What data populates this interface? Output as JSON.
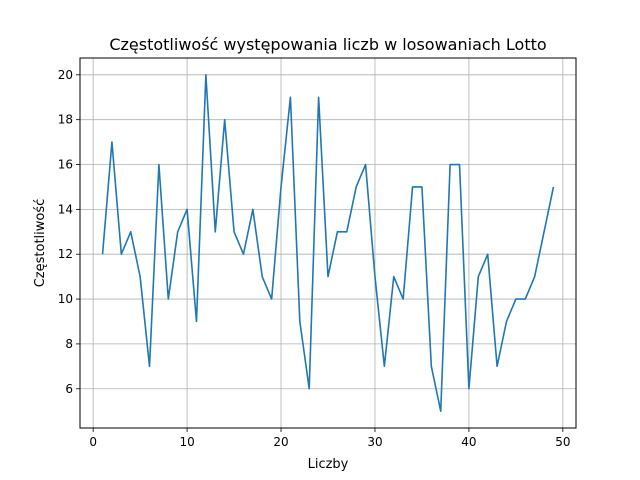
{
  "chart_data": {
    "type": "line",
    "title": "Częstotliwość występowania liczb w losowaniach Lotto",
    "xlabel": "Liczby",
    "ylabel": "Częstotliwość",
    "xlim": [
      -1.4,
      51.4
    ],
    "ylim": [
      4.25,
      20.75
    ],
    "xticks": [
      0,
      10,
      20,
      30,
      40,
      50
    ],
    "yticks": [
      6,
      8,
      10,
      12,
      14,
      16,
      18,
      20
    ],
    "grid": true,
    "line_color": "#1f77b4",
    "series": [
      {
        "x": [
          1,
          2,
          3,
          4,
          5,
          6,
          7,
          8,
          9,
          10,
          11,
          12,
          13,
          14,
          15,
          16,
          17,
          18,
          19,
          20,
          21,
          22,
          23,
          24,
          25,
          26,
          27,
          28,
          29,
          30,
          31,
          32,
          33,
          34,
          35,
          36,
          37,
          38,
          39,
          40,
          41,
          42,
          43,
          44,
          45,
          46,
          47,
          48,
          49
        ],
        "values": [
          12,
          17,
          12,
          13,
          11,
          7,
          16,
          10,
          13,
          14,
          9,
          20,
          13,
          18,
          13,
          12,
          14,
          11,
          10,
          15,
          19,
          9,
          6,
          19,
          11,
          13,
          13,
          15,
          16,
          11,
          7,
          11,
          10,
          15,
          15,
          7,
          5,
          16,
          16,
          6,
          11,
          12,
          7,
          9,
          10,
          10,
          11,
          13,
          15
        ]
      }
    ]
  }
}
